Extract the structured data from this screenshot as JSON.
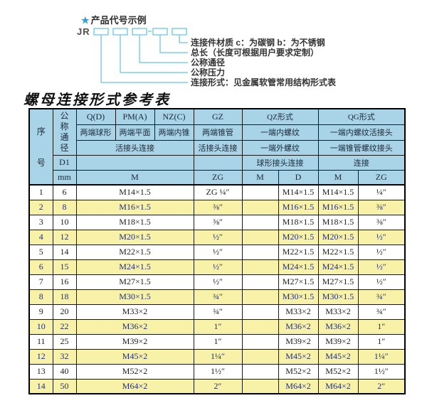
{
  "diagram": {
    "star_icon": "★",
    "heading": "产品代号示例",
    "code_prefix": "JR",
    "callouts": [
      "连接件材质  c：为碳钢  b：为不锈钢",
      "总长（长度可根据用户要求定制）",
      "公称通径",
      "公称压力",
      "连接形式：见金属软管常用结构形式表"
    ]
  },
  "table_title": "螺母连接形式参考表",
  "table": {
    "corner_label": "序号",
    "dn_label": "公称通径",
    "d1_label": "D1",
    "unit_label": "mm",
    "groups": [
      "Q(D)",
      "PM(A)",
      "NZ(C)",
      "GZ",
      "QZ形式",
      "QG形式"
    ],
    "type_row": [
      "两端球形",
      "两端平面",
      "两端内锥",
      "两端锥管",
      "一端内螺纹",
      "一端内螺纹活接头"
    ],
    "conn_row": [
      "活接头连接",
      "活接头连接",
      "一端外螺纹",
      "一端锥管螺纹接头"
    ],
    "conn2_row": [
      "球形接头连接",
      "连接"
    ],
    "thread_row": [
      "M",
      "ZG",
      "M",
      "D",
      "M",
      "ZG"
    ],
    "rows": [
      [
        "1",
        "6",
        "M14×1.5",
        "ZG ¼″",
        "",
        "M14×1.5",
        "M14×1.5",
        "¼″"
      ],
      [
        "2",
        "8",
        "M16×1.5",
        "⅜″",
        "",
        "M16×1.5",
        "M16×1.5",
        "⅜″"
      ],
      [
        "3",
        "10",
        "M18×1.5",
        "⅜″",
        "",
        "M18×1.5",
        "M18×1.5",
        "⅜″"
      ],
      [
        "4",
        "12",
        "M20×1.5",
        "½″",
        "",
        "M20×1.5",
        "M20×1.5",
        "½″"
      ],
      [
        "5",
        "14",
        "M22×1.5",
        "½″",
        "",
        "M22×1.5",
        "M22×1.5",
        "½″"
      ],
      [
        "6",
        "15",
        "M24×1.5",
        "½″",
        "",
        "M24×1.5",
        "M24×1.5",
        "½″"
      ],
      [
        "7",
        "16",
        "M27×1.5",
        "½″",
        "",
        "M27×1.5",
        "M27×1.5",
        "½″"
      ],
      [
        "8",
        "18",
        "M30×1.5",
        "¾″",
        "",
        "M30×1.5",
        "M30×1.5",
        "¾″"
      ],
      [
        "9",
        "20",
        "M33×2",
        "¾″",
        "",
        "M33×2",
        "M33×2",
        "¾″"
      ],
      [
        "10",
        "22",
        "M36×2",
        "1″",
        "",
        "M36×2",
        "M36×2",
        "1″"
      ],
      [
        "11",
        "25",
        "M39×2",
        "1″",
        "",
        "M39×2",
        "M39×2",
        "1″"
      ],
      [
        "12",
        "32",
        "M45×2",
        "1¼″",
        "",
        "M45×2",
        "M45×2",
        "1¼″"
      ],
      [
        "13",
        "40",
        "M52×2",
        "1½″",
        "",
        "M52×2",
        "M52×2",
        "1½″"
      ],
      [
        "14",
        "50",
        "M64×2",
        "2″",
        "",
        "M64×2",
        "M64×2",
        "2″"
      ]
    ]
  },
  "colors": {
    "header_bg": "#a9d4e8",
    "alt_row_bg": "#f8f2a8",
    "callout_line": "#7ecfe8",
    "star": "#29a3d8",
    "alt_row_text": "#202e7e"
  }
}
